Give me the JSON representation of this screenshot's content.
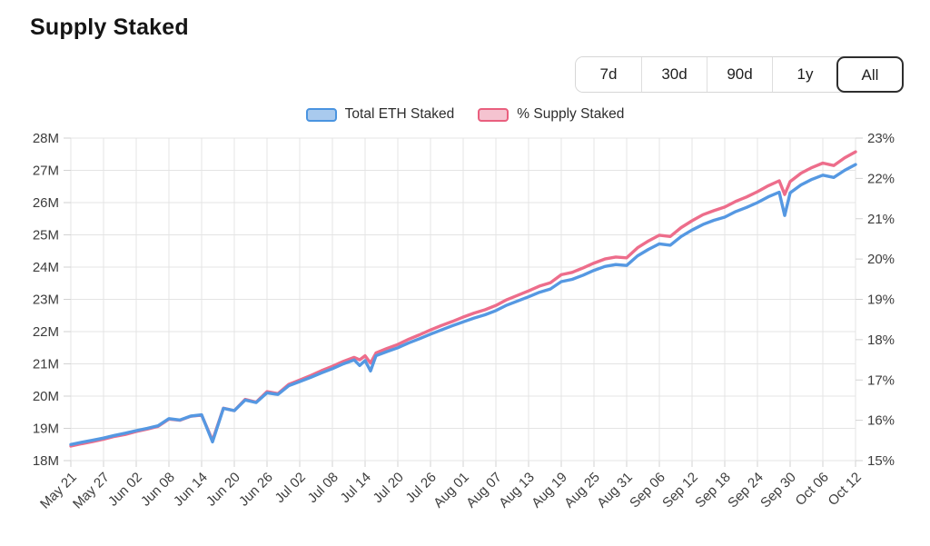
{
  "title": "Supply Staked",
  "controls": {
    "selected_range": "All",
    "ranges": [
      {
        "label": "7d"
      },
      {
        "label": "30d"
      },
      {
        "label": "90d"
      },
      {
        "label": "1y"
      },
      {
        "label": "All"
      }
    ]
  },
  "legend": {
    "items": [
      {
        "label": "Total ETH Staked",
        "fill": "#a9caee",
        "border": "#4a94e0"
      },
      {
        "label": "% Supply Staked",
        "fill": "#f5c3d0",
        "border": "#e95f7e"
      }
    ]
  },
  "colors": {
    "blue_line": "#5598e2",
    "pink_line": "#ed6d8b",
    "grid": "#e4e4e4",
    "axis_text": "#3d3d3d"
  },
  "chart_data": {
    "type": "line",
    "title": "Supply Staked",
    "legend_position": "top",
    "grid": true,
    "x_tick_labels": [
      "May 21",
      "May 27",
      "Jun 02",
      "Jun 08",
      "Jun 14",
      "Jun 20",
      "Jun 26",
      "Jul 02",
      "Jul 08",
      "Jul 14",
      "Jul 20",
      "Jul 26",
      "Aug 01",
      "Aug 07",
      "Aug 13",
      "Aug 19",
      "Aug 25",
      "Aug 31",
      "Sep 06",
      "Sep 12",
      "Sep 18",
      "Sep 24",
      "Sep 30",
      "Oct 06",
      "Oct 12"
    ],
    "left_axis": {
      "unit": "M ETH",
      "min": 18,
      "max": 28,
      "tick_labels": [
        "18M",
        "19M",
        "20M",
        "21M",
        "22M",
        "23M",
        "24M",
        "25M",
        "26M",
        "27M",
        "28M"
      ]
    },
    "right_axis": {
      "unit": "%",
      "min": 15,
      "max": 23,
      "tick_labels": [
        "15%",
        "16%",
        "17%",
        "18%",
        "19%",
        "20%",
        "21%",
        "22%",
        "23%"
      ]
    },
    "dates": [
      "May 21",
      "May 23",
      "May 25",
      "May 27",
      "May 29",
      "May 31",
      "Jun 02",
      "Jun 04",
      "Jun 06",
      "Jun 08",
      "Jun 10",
      "Jun 12",
      "Jun 14",
      "Jun 16",
      "Jun 18",
      "Jun 20",
      "Jun 22",
      "Jun 24",
      "Jun 26",
      "Jun 28",
      "Jun 30",
      "Jul 02",
      "Jul 04",
      "Jul 06",
      "Jul 08",
      "Jul 10",
      "Jul 12",
      "Jul 13",
      "Jul 14",
      "Jul 15",
      "Jul 16",
      "Jul 18",
      "Jul 20",
      "Jul 22",
      "Jul 24",
      "Jul 26",
      "Jul 28",
      "Jul 30",
      "Aug 01",
      "Aug 03",
      "Aug 05",
      "Aug 07",
      "Aug 09",
      "Aug 11",
      "Aug 13",
      "Aug 15",
      "Aug 17",
      "Aug 19",
      "Aug 21",
      "Aug 23",
      "Aug 25",
      "Aug 27",
      "Aug 29",
      "Aug 31",
      "Sep 02",
      "Sep 04",
      "Sep 06",
      "Sep 08",
      "Sep 10",
      "Sep 12",
      "Sep 14",
      "Sep 16",
      "Sep 18",
      "Sep 20",
      "Sep 22",
      "Sep 24",
      "Sep 26",
      "Sep 28",
      "Sep 29",
      "Sep 30",
      "Oct 02",
      "Oct 04",
      "Oct 06",
      "Oct 08",
      "Oct 10",
      "Oct 12"
    ],
    "series": [
      {
        "name": "Total ETH Staked",
        "axis": "left",
        "color": "#5598e2",
        "values": [
          18.5,
          18.57,
          18.63,
          18.7,
          18.78,
          18.85,
          18.93,
          19.0,
          19.08,
          19.3,
          19.26,
          19.38,
          19.42,
          18.58,
          19.62,
          19.55,
          19.88,
          19.8,
          20.1,
          20.05,
          20.32,
          20.45,
          20.58,
          20.72,
          20.85,
          21.0,
          21.12,
          20.95,
          21.1,
          20.78,
          21.25,
          21.38,
          21.5,
          21.65,
          21.78,
          21.92,
          22.05,
          22.18,
          22.3,
          22.42,
          22.52,
          22.65,
          22.82,
          22.95,
          23.08,
          23.22,
          23.32,
          23.55,
          23.62,
          23.75,
          23.9,
          24.02,
          24.08,
          24.05,
          24.35,
          24.55,
          24.72,
          24.68,
          24.95,
          25.15,
          25.32,
          25.45,
          25.55,
          25.72,
          25.85,
          26.0,
          26.18,
          26.32,
          25.6,
          26.3,
          26.55,
          26.72,
          26.85,
          26.78,
          27.0,
          27.18
        ]
      },
      {
        "name": "% Supply Staked",
        "axis": "right",
        "color": "#ed6d8b",
        "values": [
          15.36,
          15.42,
          15.47,
          15.53,
          15.6,
          15.65,
          15.72,
          15.78,
          15.85,
          16.03,
          16.0,
          16.1,
          16.13,
          15.5,
          16.3,
          16.24,
          16.52,
          16.45,
          16.71,
          16.66,
          16.89,
          17.0,
          17.11,
          17.23,
          17.34,
          17.46,
          17.56,
          17.5,
          17.6,
          17.42,
          17.67,
          17.78,
          17.88,
          18.01,
          18.12,
          18.24,
          18.35,
          18.45,
          18.56,
          18.66,
          18.74,
          18.85,
          18.99,
          19.1,
          19.21,
          19.33,
          19.41,
          19.61,
          19.67,
          19.78,
          19.9,
          20.0,
          20.05,
          20.03,
          20.28,
          20.45,
          20.59,
          20.56,
          20.78,
          20.95,
          21.1,
          21.2,
          21.29,
          21.43,
          21.54,
          21.67,
          21.82,
          21.94,
          21.6,
          21.92,
          22.13,
          22.27,
          22.38,
          22.32,
          22.51,
          22.66
        ]
      }
    ]
  }
}
